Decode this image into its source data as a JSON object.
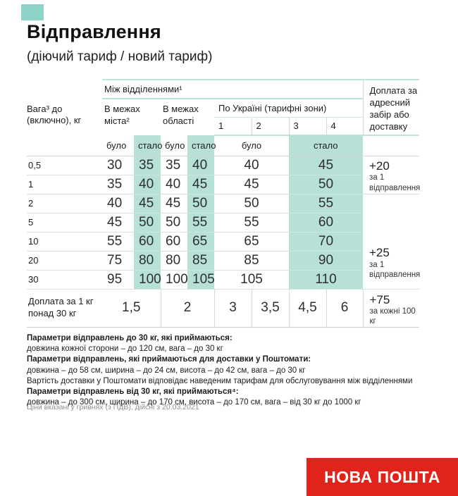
{
  "page": {
    "title": "Відправлення",
    "subtitle": "(діючий тариф / новий тариф)"
  },
  "table": {
    "header": {
      "weight_col": "Вага³ до (включно), кг",
      "between_branches": "Між відділеннями¹",
      "within_city": "В межах міста²",
      "within_region": "В межах області",
      "ukraine_zones": "По Україні (тарифні зони)",
      "zones": [
        "1",
        "2",
        "3",
        "4"
      ],
      "was": "було",
      "now": "стало",
      "surcharge_col": "Доплата за адресний забір або доставку"
    },
    "rows": [
      {
        "weight": "0,5",
        "city_was": "30",
        "city_now": "35",
        "region_was": "35",
        "region_now": "40",
        "zones_was": "40",
        "zones_now": "45"
      },
      {
        "weight": "1",
        "city_was": "35",
        "city_now": "40",
        "region_was": "40",
        "region_now": "45",
        "zones_was": "45",
        "zones_now": "50"
      },
      {
        "weight": "2",
        "city_was": "40",
        "city_now": "45",
        "region_was": "45",
        "region_now": "50",
        "zones_was": "50",
        "zones_now": "55"
      },
      {
        "weight": "5",
        "city_was": "45",
        "city_now": "50",
        "region_was": "50",
        "region_now": "55",
        "zones_was": "55",
        "zones_now": "60"
      },
      {
        "weight": "10",
        "city_was": "55",
        "city_now": "60",
        "region_was": "60",
        "region_now": "65",
        "zones_was": "65",
        "zones_now": "70"
      },
      {
        "weight": "20",
        "city_was": "75",
        "city_now": "80",
        "region_was": "80",
        "region_now": "85",
        "zones_was": "85",
        "zones_now": "90"
      },
      {
        "weight": "30",
        "city_was": "95",
        "city_now": "100",
        "region_was": "100",
        "region_now": "105",
        "zones_was": "105",
        "zones_now": "110"
      }
    ],
    "surcharge_row": {
      "label": "Доплата за 1 кг понад 30 кг",
      "city": "1,5",
      "region": "2",
      "zone1": "3",
      "zone2": "3,5",
      "zone3": "4,5",
      "zone4": "6"
    },
    "address_surcharges": [
      {
        "value": "+20",
        "note": "за 1 відправлення"
      },
      {
        "value": "+25",
        "note": "за 1 відправлення"
      },
      {
        "value": "+75",
        "note": "за кожні 100 кг"
      }
    ]
  },
  "footnotes": [
    {
      "text": "Параметри відправлень до 30 кг, які приймаються:",
      "bold": true
    },
    {
      "text": "довжина кожної сторони – до 120 см, вага – до 30 кг",
      "bold": false
    },
    {
      "text": "Параметри відправлень, які приймаються для доставки у Поштомати:",
      "bold": true
    },
    {
      "text": "довжина – до 58 см, ширина – до 24 см, висота – до 42 см, вага – до 30 кг",
      "bold": false
    },
    {
      "text": "Вартість доставки у Поштомати відповідає наведеним тарифам для обслуговування між відділеннями",
      "bold": false
    },
    {
      "text": "Параметри відправлень від 30 кг, які приймаються⁴:",
      "bold": true
    },
    {
      "text": "довжина – до 300 см, ширина – до 170 см, висота – до 170 см, вага – від 30 кг до 1000 кг",
      "bold": false
    }
  ],
  "disclaimer": "Ціни вказані у гривнях (з ПДВ), дійсні з 20.03.2021",
  "footer": {
    "brand": "НОВА ПОШТА"
  },
  "colors": {
    "accent_teal": "#b7e0d7",
    "brand_red": "#e0241b"
  }
}
